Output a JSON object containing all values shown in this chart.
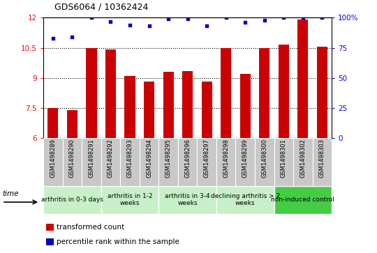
{
  "title": "GDS6064 / 10362424",
  "samples": [
    "GSM1498289",
    "GSM1498290",
    "GSM1498291",
    "GSM1498292",
    "GSM1498293",
    "GSM1498294",
    "GSM1498295",
    "GSM1498296",
    "GSM1498297",
    "GSM1498298",
    "GSM1498299",
    "GSM1498300",
    "GSM1498301",
    "GSM1498302",
    "GSM1498303"
  ],
  "bar_values": [
    7.5,
    7.4,
    10.5,
    10.4,
    9.1,
    8.8,
    9.3,
    9.35,
    8.8,
    10.5,
    9.2,
    10.5,
    10.65,
    11.9,
    10.55
  ],
  "dot_values": [
    83,
    84,
    100,
    97,
    94,
    93,
    99,
    99,
    93,
    100,
    96,
    98,
    100,
    100,
    100
  ],
  "groups": [
    {
      "label": "arthritis in 0-3 days",
      "start": 0,
      "end": 2
    },
    {
      "label": "arthritis in 1-2\nweeks",
      "start": 3,
      "end": 5
    },
    {
      "label": "arthritis in 3-4\nweeks",
      "start": 6,
      "end": 8
    },
    {
      "label": "declining arthritis > 2\nweeks",
      "start": 9,
      "end": 11
    },
    {
      "label": "non-induced control",
      "start": 12,
      "end": 14
    }
  ],
  "group_colors": [
    "#c8f0c8",
    "#c8f0c8",
    "#c8f0c8",
    "#c8f0c8",
    "#44cc44"
  ],
  "bar_color": "#cc0000",
  "dot_color": "#0000cc",
  "ylim_left": [
    6,
    12
  ],
  "ylim_right": [
    0,
    100
  ],
  "yticks_left": [
    6,
    7.5,
    9,
    10.5,
    12
  ],
  "yticks_right": [
    0,
    25,
    50,
    75,
    100
  ],
  "ytick_labels_left": [
    "6",
    "7.5",
    "9",
    "10.5",
    "12"
  ],
  "ytick_labels_right": [
    "0",
    "25",
    "50",
    "75",
    "100%"
  ],
  "bar_width": 0.55,
  "xlabel_bg": "#c8c8c8",
  "xlabel_border": "#ffffff"
}
